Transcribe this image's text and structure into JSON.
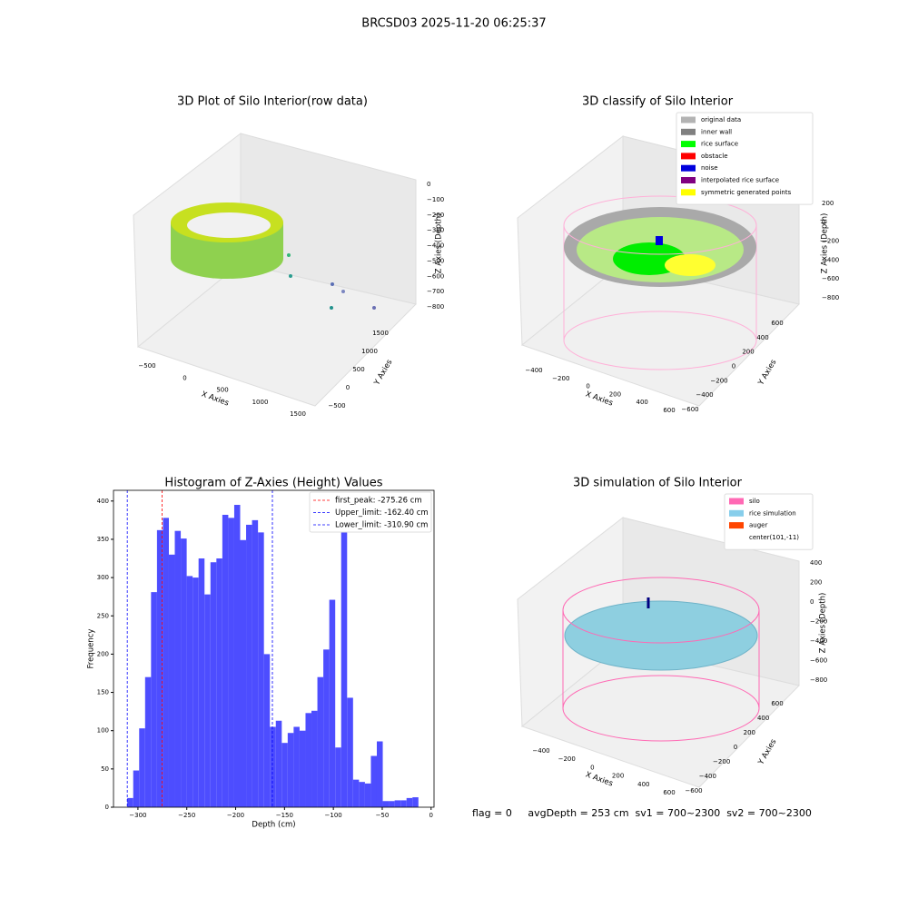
{
  "title": "BRCSD03 2025-11-20 06:25:37",
  "chart_data": [
    {
      "type": "scatter3d",
      "title": "3D Plot of Silo Interior(row data)",
      "xlabel": "X Axies",
      "ylabel": "Y Axies",
      "zlabel": "Z Axies (Depth)",
      "xlim": [
        -500,
        1500
      ],
      "xticks": [
        {
          "value": -500,
          "label": "−500"
        },
        0,
        500,
        1000,
        1500
      ],
      "ylim": [
        -500,
        1500
      ],
      "yticks": [
        {
          "value": -500,
          "label": "−500"
        },
        0,
        500,
        1000,
        1500
      ],
      "zlim": [
        -800,
        0
      ],
      "zticks": [
        0,
        {
          "value": -100,
          "label": "−100"
        },
        {
          "value": -200,
          "label": "−200"
        },
        {
          "value": -300,
          "label": "−300"
        },
        {
          "value": -400,
          "label": "−400"
        },
        {
          "value": -500,
          "label": "−500"
        },
        {
          "value": -600,
          "label": "−600"
        },
        {
          "value": -700,
          "label": "−700"
        },
        {
          "value": -800,
          "label": "−800"
        }
      ]
    },
    {
      "type": "scatter3d",
      "title": "3D classify of Silo Interior",
      "xlabel": "X Axies",
      "ylabel": "Y Axies",
      "zlabel": "Z Axies (Depth)",
      "xlim": [
        -400,
        600
      ],
      "xticks": [
        {
          "value": -400,
          "label": "−400"
        },
        {
          "value": -200,
          "label": "−200"
        },
        0,
        200,
        400,
        600
      ],
      "ylim": [
        -600,
        600
      ],
      "yticks": [
        {
          "value": -600,
          "label": "−600"
        },
        {
          "value": -400,
          "label": "−400"
        },
        {
          "value": -200,
          "label": "−200"
        },
        0,
        200,
        400,
        600
      ],
      "zlim": [
        -800,
        200
      ],
      "zticks": [
        200,
        0,
        {
          "value": -200,
          "label": "−200"
        },
        {
          "value": -400,
          "label": "−400"
        },
        {
          "value": -600,
          "label": "−600"
        },
        {
          "value": -800,
          "label": "−800"
        }
      ],
      "legend": [
        {
          "name": "original data",
          "color": "#b3b3b3"
        },
        {
          "name": "inner wall",
          "color": "#808080"
        },
        {
          "name": "rice surface",
          "color": "#00ff00"
        },
        {
          "name": "obstacle",
          "color": "#ff0000"
        },
        {
          "name": "noise",
          "color": "#0000dd"
        },
        {
          "name": "interpolated rice surface",
          "color": "#800080"
        },
        {
          "name": "symmetric generated points",
          "color": "#ffff00"
        }
      ]
    },
    {
      "type": "histogram",
      "title": "Histogram of Z-Axies (Height) Values",
      "xlabel": "Depth (cm)",
      "ylabel": "Frequency",
      "color": "#4d4dff",
      "bins": [
        -310.9,
        -304.82,
        -298.74,
        -292.66,
        -286.58,
        -280.5,
        -274.42,
        -268.34,
        -262.26,
        -256.18,
        -250.1,
        -244.02,
        -237.94,
        -231.86,
        -225.78,
        -219.7,
        -213.62,
        -207.54,
        -201.46,
        -195.38,
        -189.3,
        -183.22,
        -177.14,
        -171.06,
        -164.98,
        -158.9,
        -152.82,
        -146.74,
        -140.66,
        -134.58,
        -128.5,
        -122.42,
        -116.34,
        -110.26,
        -104.18,
        -98.1,
        -92.02,
        -85.94,
        -79.86,
        -73.78,
        -67.7,
        -61.62,
        -55.54,
        -49.46,
        -43.38,
        -37.3,
        -31.22,
        -25.14,
        -19.06,
        -12.98
      ],
      "values": [
        12,
        48,
        103,
        170,
        281,
        362,
        378,
        330,
        361,
        351,
        302,
        300,
        325,
        278,
        320,
        325,
        382,
        378,
        395,
        349,
        369,
        375,
        359,
        200,
        105,
        113,
        84,
        97,
        105,
        100,
        123,
        126,
        170,
        206,
        271,
        78,
        390,
        143,
        36,
        33,
        31,
        67,
        86,
        8,
        8,
        9,
        9,
        12,
        13
      ],
      "xlim": [
        -325,
        3
      ],
      "xticks": [
        {
          "value": -300,
          "label": "−300"
        },
        {
          "value": -250,
          "label": "−250"
        },
        {
          "value": -200,
          "label": "−200"
        },
        {
          "value": -150,
          "label": "−150"
        },
        {
          "value": -100,
          "label": "−100"
        },
        {
          "value": -50,
          "label": "−50"
        },
        0
      ],
      "ylim": [
        0,
        414
      ],
      "yticks": [
        0,
        50,
        100,
        150,
        200,
        250,
        300,
        350,
        400
      ],
      "lines": [
        {
          "name": "first_peak: -275.26 cm",
          "value": -275.26,
          "color": "#ff0000"
        },
        {
          "name": "Upper_limit: -162.40 cm",
          "value": -162.4,
          "color": "#0000ff"
        },
        {
          "name": "Lower_limit: -310.90 cm",
          "value": -310.9,
          "color": "#0000ff"
        }
      ]
    },
    {
      "type": "surface3d",
      "title": "3D simulation of Silo Interior",
      "xlabel": "X Axies",
      "ylabel": "Y Axies",
      "zlabel": "Z Axies (Depth)",
      "xlim": [
        -400,
        600
      ],
      "xticks": [
        {
          "value": -400,
          "label": "−400"
        },
        {
          "value": -200,
          "label": "−200"
        },
        0,
        200,
        400,
        600
      ],
      "ylim": [
        -600,
        600
      ],
      "yticks": [
        {
          "value": -600,
          "label": "−600"
        },
        {
          "value": -400,
          "label": "−400"
        },
        {
          "value": -200,
          "label": "−200"
        },
        0,
        200,
        400,
        600
      ],
      "zlim": [
        -800,
        400
      ],
      "zticks": [
        400,
        200,
        0,
        {
          "value": -200,
          "label": "−200"
        },
        {
          "value": -400,
          "label": "−400"
        },
        {
          "value": -600,
          "label": "−600"
        },
        {
          "value": -800,
          "label": "−800"
        }
      ],
      "legend": [
        {
          "name": "silo",
          "color": "#ff69b4"
        },
        {
          "name": "rice simulation",
          "color": "#87ceeb"
        },
        {
          "name": "auger",
          "color": "#ff4500"
        },
        {
          "name": "center(101,-11)",
          "color": "#ffffff"
        }
      ]
    }
  ],
  "footer": "flag = 0     avgDepth = 253 cm  sv1 = 700~2300  sv2 = 700~2300"
}
